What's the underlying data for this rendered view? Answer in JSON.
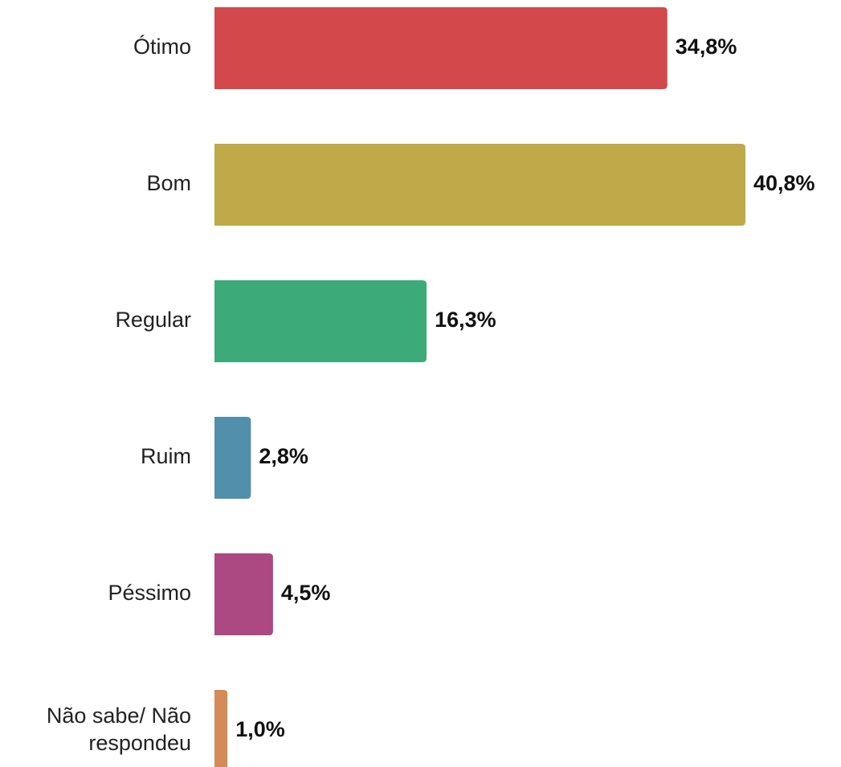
{
  "chart_data": {
    "type": "bar",
    "orientation": "horizontal",
    "categories": [
      [
        "Ótimo"
      ],
      [
        "Bom"
      ],
      [
        "Regular"
      ],
      [
        "Ruim"
      ],
      [
        "Péssimo"
      ],
      [
        "Não sabe/ Não",
        "respondeu"
      ]
    ],
    "values": [
      34.8,
      40.8,
      16.3,
      2.8,
      4.5,
      1.0
    ],
    "value_labels": [
      "34,8%",
      "40,8%",
      "16,3%",
      "2,8%",
      "4,5%",
      "1,0%"
    ],
    "colors": [
      "#d2484b",
      "#bfa948",
      "#3dab79",
      "#528fab",
      "#ac4882",
      "#d48b57"
    ],
    "xlim": [
      0,
      40.8
    ],
    "grid": false,
    "legend": "none"
  }
}
